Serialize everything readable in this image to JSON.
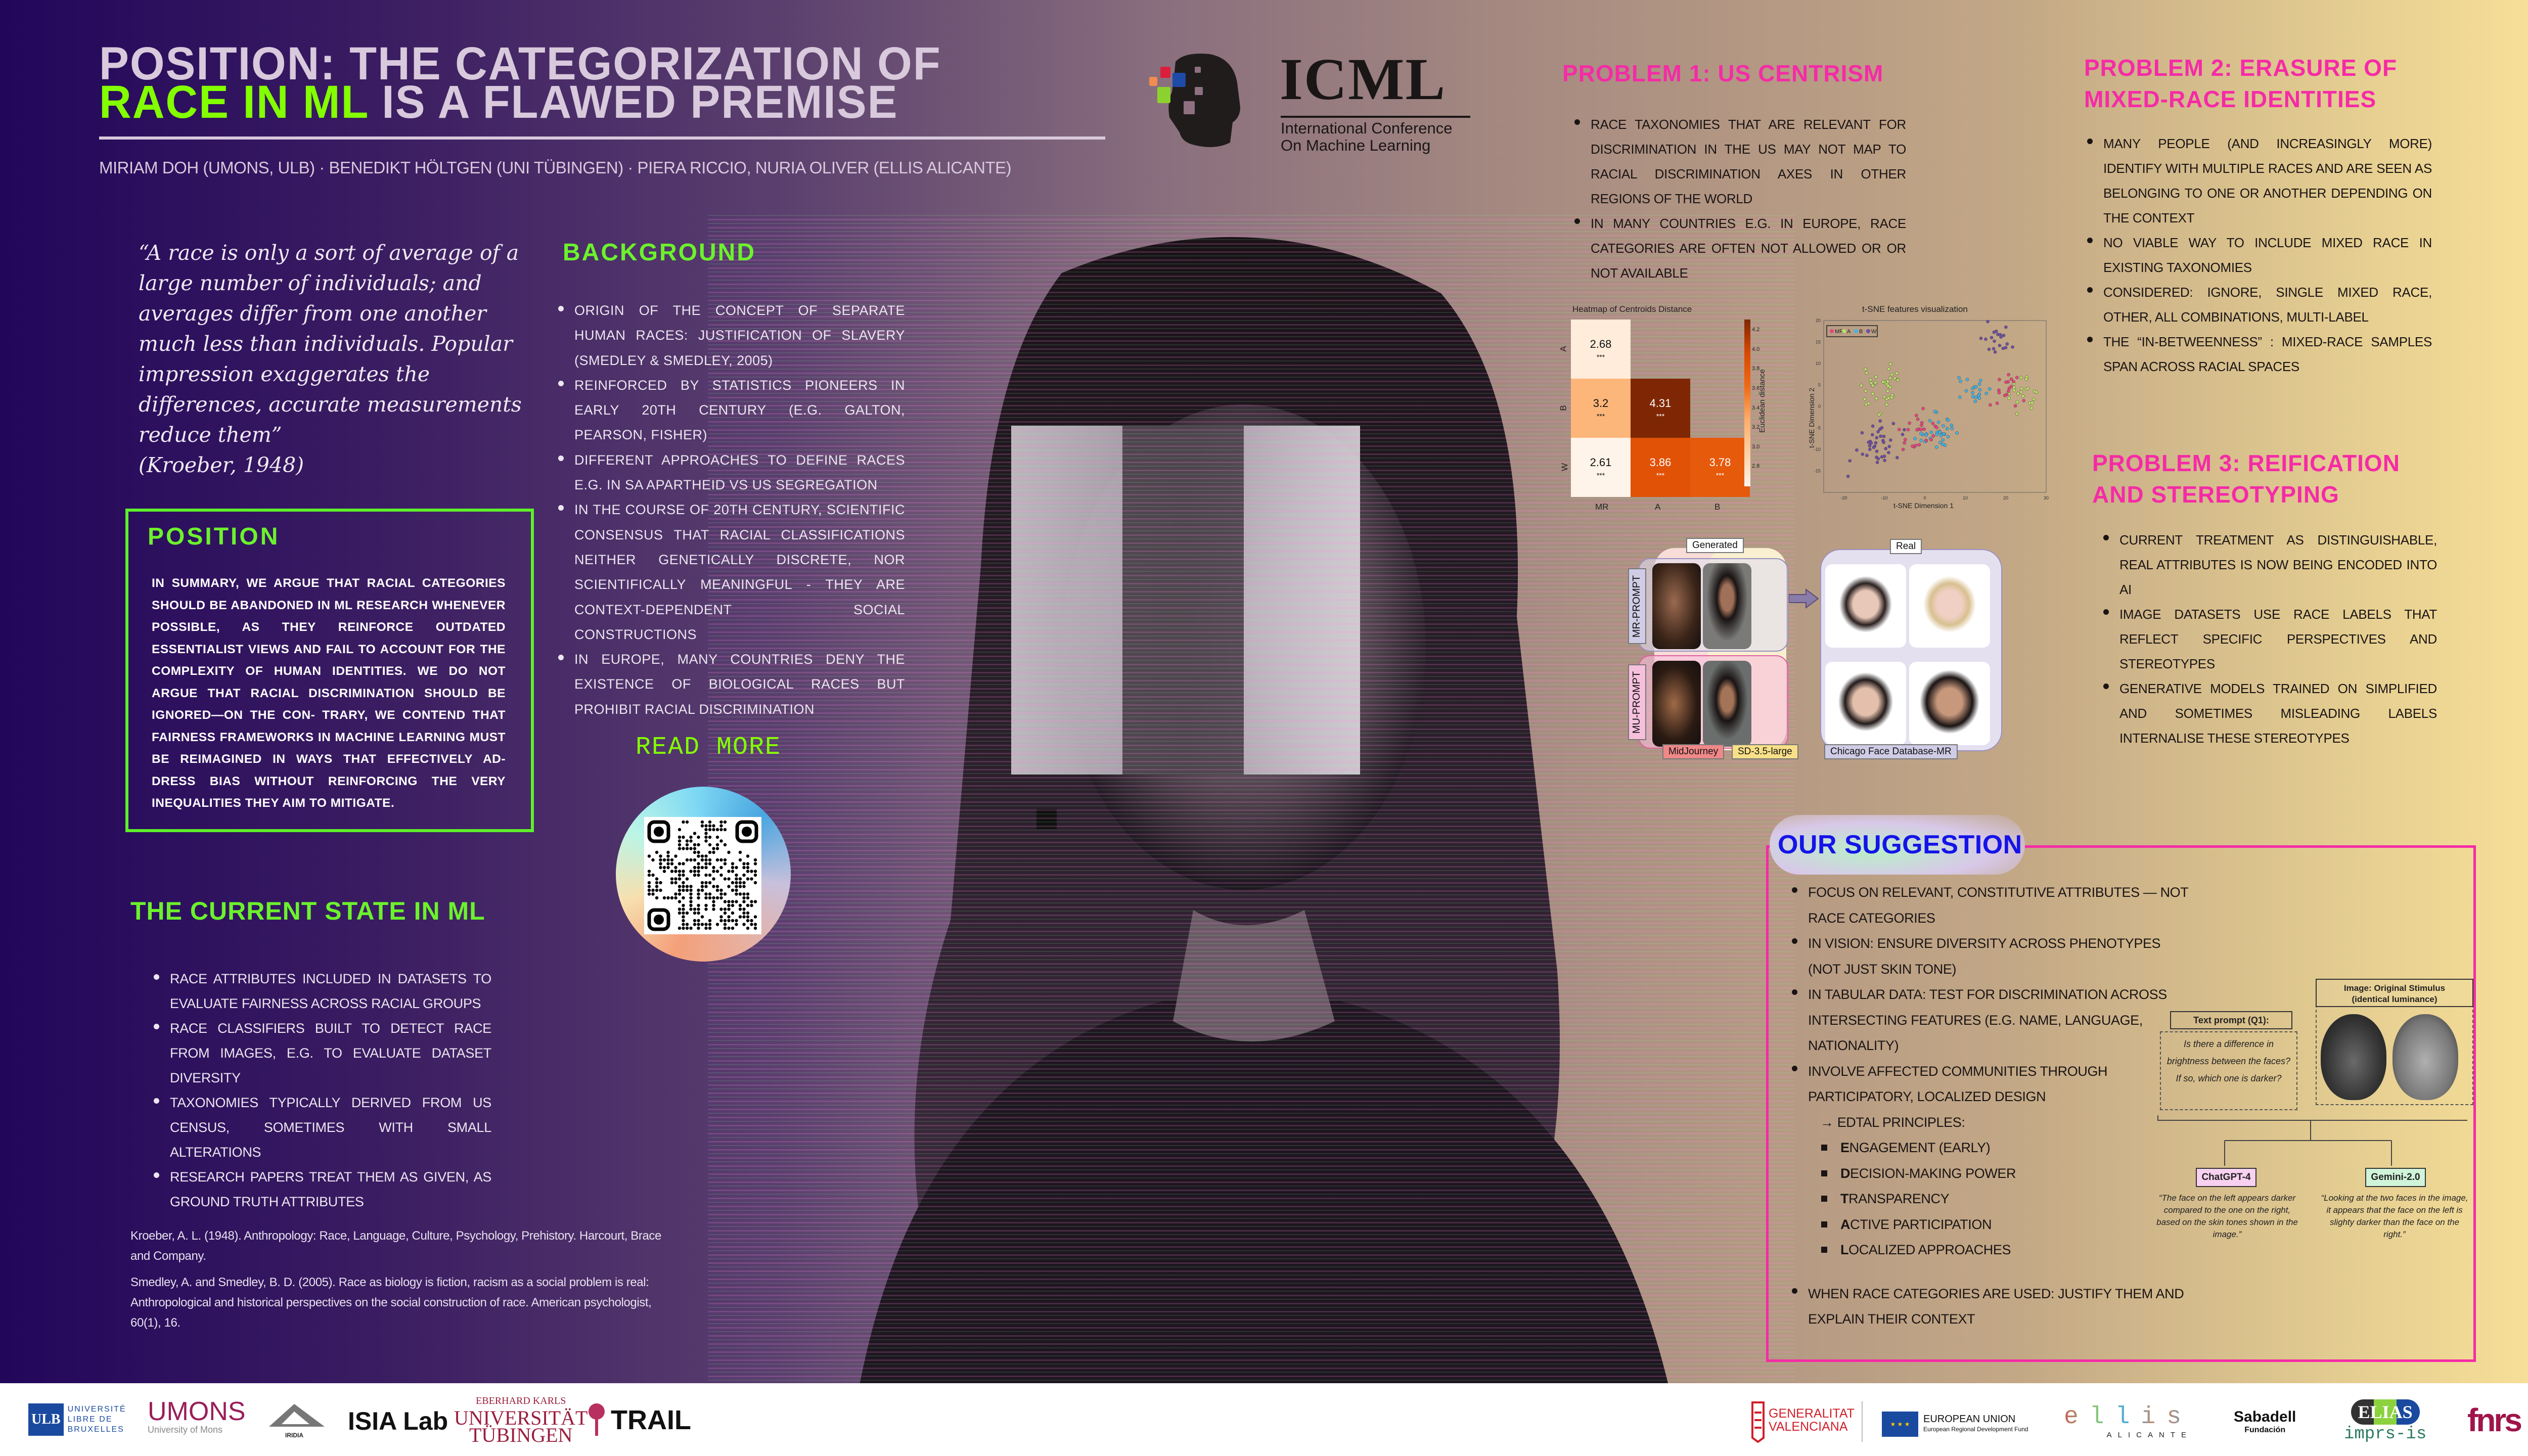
{
  "header": {
    "title_line1": "POSITION: THE CATEGORIZATION OF",
    "title_highlight": "RACE IN ML",
    "title_line2_rest": " IS A FLAWED PREMISE",
    "authors": "MIRIAM DOH (UMONS, ULB) · BENEDIKT HÖLTGEN (UNI TÜBINGEN) · PIERA RICCIO,  NURIA OLIVER (ELLIS ALICANTE)",
    "accent_color": "#84ff00"
  },
  "conference_logo": {
    "name": "ICML",
    "subtitle_line1": "International Conference",
    "subtitle_line2": "On Machine Learning"
  },
  "quote": {
    "text": "“A race is only a sort of average of a large number of individuals; and averages differ from one another much less than individuals. Popular impression exaggerates the differences, accurate measurements reduce them”",
    "attribution": "(Kroeber, 1948)"
  },
  "position": {
    "heading": "POSITION",
    "body": "IN SUMMARY, WE ARGUE THAT RACIAL CATEGORIES SHOULD BE ABANDONED IN ML RESEARCH WHENEVER POSSIBLE, AS THEY REINFORCE OUTDATED ESSENTIALIST VIEWS AND FAIL TO ACCOUNT FOR THE COMPLEXITY OF HUMAN IDENTITIES. WE DO NOT ARGUE THAT RACIAL DISCRIMINATION SHOULD BE IGNORED—ON THE CON- TRARY, WE CONTEND THAT FAIRNESS FRAMEWORKS IN MACHINE LEARNING MUST BE REIMAGINED IN WAYS THAT EFFECTIVELY AD- DRESS BIAS WITHOUT REINFORCING THE VERY INEQUALITIES THEY AIM TO MITIGATE."
  },
  "background": {
    "heading": "BACKGROUND",
    "items": [
      "ORIGIN OF THE CONCEPT OF SEPARATE HUMAN RACES: JUSTIFICATION OF SLAVERY (SMEDLEY & SMEDLEY, 2005)",
      "REINFORCED BY STATISTICS PIONEERS IN EARLY 20TH CENTURY (E.G. GALTON, PEARSON, FISHER)",
      "DIFFERENT APPROACHES TO DEFINE RACES E.G. IN SA APARTHEID VS US SEGREGATION",
      "IN THE COURSE OF 20TH CENTURY, SCIENTIFIC CONSENSUS THAT RACIAL CLASSIFICATIONS NEITHER GENETICALLY DISCRETE, NOR SCIENTIFICALLY MEANINGFUL - THEY ARE CONTEXT-DEPENDENT SOCIAL CONSTRUCTIONS",
      "IN EUROPE, MANY COUNTRIES DENY THE EXISTENCE OF BIOLOGICAL RACES BUT PROHIBIT RACIAL DISCRIMINATION"
    ]
  },
  "read_more": {
    "label": "READ MORE",
    "qr_icon": "qr-code"
  },
  "current_state": {
    "heading": "THE CURRENT STATE IN ML",
    "items": [
      "RACE ATTRIBUTES INCLUDED IN DATASETS TO EVALUATE FAIRNESS ACROSS RACIAL GROUPS",
      "RACE CLASSIFIERS BUILT TO DETECT RACE FROM IMAGES, E.G. TO EVALUATE DATASET DIVERSITY",
      "TAXONOMIES TYPICALLY DERIVED FROM US CENSUS, SOMETIMES WITH SMALL ALTERATIONS",
      "RESEARCH PAPERS TREAT THEM AS GIVEN, AS GROUND TRUTH ATTRIBUTES"
    ]
  },
  "references": [
    "Kroeber, A. L. (1948). Anthropology: Race, Language, Culture, Psychology, Prehistory. Harcourt, Brace and Company.",
    "Smedley, A. and Smedley, B. D.  (2005). Race as biology is fiction, racism as a social problem is real: Anthropological and historical perspectives on the social construction of race. American psychologist, 60(1), 16."
  ],
  "problem1": {
    "heading": "PROBLEM 1: US CENTRISM",
    "items": [
      "RACE TAXONOMIES THAT ARE RELEVANT FOR DISCRIMINATION IN THE US MAY NOT MAP TO RACIAL DISCRIMINATION AXES IN OTHER REGIONS OF THE WORLD",
      "IN MANY COUNTRIES E.G. IN EUROPE, RACE CATEGORIES ARE OFTEN NOT ALLOWED OR OR NOT AVAILABLE"
    ]
  },
  "problem2": {
    "heading": "PROBLEM 2:  ERASURE OF MIXED-RACE IDENTITIES",
    "items": [
      "MANY PEOPLE (AND INCREASINGLY MORE) IDENTIFY WITH MULTIPLE RACES AND ARE SEEN AS BELONGING TO ONE OR ANOTHER DEPENDING ON THE CONTEXT",
      "NO VIABLE WAY TO INCLUDE MIXED RACE IN EXISTING TAXONOMIES",
      "CONSIDERED: IGNORE, SINGLE MIXED RACE, OTHER, ALL COMBINATIONS, MULTI-LABEL",
      "THE “IN-BETWEENNESS” : MIXED-RACE SAMPLES SPAN ACROSS RACIAL SPACES"
    ]
  },
  "problem3": {
    "heading": "PROBLEM 3: REIFICATION AND STEREOTYPING",
    "items": [
      "CURRENT TREATMENT AS DISTINGUISHABLE, REAL ATTRIBUTES IS NOW BEING ENCODED INTO AI",
      "IMAGE DATASETS USE RACE LABELS THAT REFLECT SPECIFIC PERSPECTIVES AND STEREOTYPES",
      "GENERATIVE MODELS TRAINED ON SIMPLIFIED AND SOMETIMES MISLEADING LABELS INTERNALISE THESE STEREOTYPES"
    ]
  },
  "chart_data": [
    {
      "type": "heatmap",
      "title": "Heatmap of Centroids Distance",
      "columns": [
        "MR",
        "A",
        "B"
      ],
      "rows": [
        "A",
        "B",
        "W"
      ],
      "values": [
        [
          2.68,
          null,
          null
        ],
        [
          3.2,
          4.31,
          null
        ],
        [
          2.61,
          3.86,
          3.78
        ]
      ],
      "annotation": "***",
      "colorbar_label": "Euclidean distance",
      "colorbar_ticks": [
        2.8,
        3.0,
        3.2,
        3.4,
        3.6,
        3.8,
        4.0,
        4.2
      ],
      "colorbar_range": [
        2.6,
        4.31
      ],
      "colormap": "Oranges"
    },
    {
      "type": "scatter",
      "title": "t-SNE features visualization",
      "xlabel": "t-SNE Dimension 1",
      "ylabel": "t-SNE Dimension 2",
      "xlim": [
        -25,
        30
      ],
      "ylim": [
        -20,
        20
      ],
      "x_ticks": [
        -20,
        -10,
        0,
        10,
        20,
        30
      ],
      "y_ticks": [
        -15,
        -10,
        -5,
        0,
        5,
        10,
        15,
        20
      ],
      "legend": "top-left",
      "series": [
        {
          "name": "MR",
          "color": "#e8457f"
        },
        {
          "name": "A",
          "color": "#b9e068"
        },
        {
          "name": "B",
          "color": "#45b4e6"
        },
        {
          "name": "W",
          "color": "#6f4fa3"
        }
      ]
    }
  ],
  "faces_figure": {
    "generated_label": "Generated",
    "real_label": "Real",
    "row_labels": [
      "MR-PROMPT",
      "MU-PROMPT"
    ],
    "col_labels": [
      "MidJourney",
      "SD-3.5-large"
    ],
    "real_caption": "Chicago Face Database-MR"
  },
  "suggestion": {
    "heading": "OUR SUGGESTION",
    "items": [
      "FOCUS ON RELEVANT, CONSTITUTIVE ATTRIBUTES — NOT RACE CATEGORIES",
      "IN VISION: ENSURE DIVERSITY ACROSS PHENOTYPES (NOT JUST SKIN TONE)",
      "IN TABULAR DATA: TEST FOR DISCRIMINATION ACROSS INTERSECTING FEATURES (E.G. NAME, LANGUAGE, NATIONALITY)",
      "INVOLVE AFFECTED COMMUNITIES THROUGH PARTICIPATORY, LOCALIZED DESIGN"
    ],
    "edtal_label": "→ EDTAL PRINCIPLES:",
    "principles": [
      "ENGAGEMENT (EARLY)",
      "DECISION-MAKING POWER",
      "TRANSPARENCY",
      "ACTIVE PARTICIPATION",
      "LOCALIZED APPROACHES"
    ],
    "final_item": "WHEN RACE CATEGORIES ARE USED: JUSTIFY THEM AND EXPLAIN THEIR CONTEXT"
  },
  "stimulus_figure": {
    "image_label": "Image: Original Stimulus (identical luminance)",
    "prompt_label": "Text prompt (Q1):",
    "prompt_text": "Is there a difference in brightness between the faces? If so, which one is darker?",
    "model1": "ChatGPT-4",
    "model1_color": "#f8d0f0",
    "model1_answer": "“The face on the left appears darker compared to the one on the right, based on the skin tones shown in the image.”",
    "model2": "Gemini-2.0",
    "model2_color": "#d0f4d8",
    "model2_answer": "“Looking at the two faces in the image, it appears that the face on the left is slighty darker than the face on the right.”"
  },
  "footer_logos": {
    "ulb": {
      "mark": "ULB",
      "text": "UNIVERSITÉ LIBRE DE BRUXELLES"
    },
    "umons": {
      "mark": "UMONS",
      "text": "University of Mons"
    },
    "iridia": {
      "mark": "IRIDIA"
    },
    "isia": {
      "mark": "ISIA Lab"
    },
    "tubingen": {
      "line1": "EBERHARD KARLS",
      "line2": "UNIVERSITÄT",
      "line3": "TÜBINGEN"
    },
    "trail": {
      "mark": "TRAIL"
    },
    "gva": {
      "line1": "GENERALITAT",
      "line2": "VALENCIANA"
    },
    "eu": {
      "line1": "EUROPEAN UNION",
      "line2": "European Regional Development Fund"
    },
    "ellis": {
      "mark": "ellis",
      "sub": "ALICANTE"
    },
    "sabadell": {
      "mark": "Sabadell",
      "sub": "Fundación"
    },
    "elias": {
      "mark": "ELIAS",
      "sub": "imprs-is"
    },
    "fnrs": {
      "mark": "fnrs"
    }
  }
}
